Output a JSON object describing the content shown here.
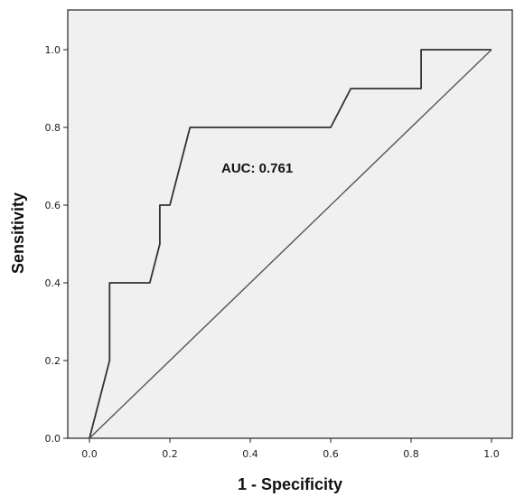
{
  "chart_data": {
    "type": "line",
    "xlabel": "1 - Specificity",
    "ylabel": "Sensitivity",
    "xlim": [
      0.0,
      1.0
    ],
    "ylim": [
      0.0,
      1.0
    ],
    "x_ticks": [
      "0.0",
      "0.2",
      "0.4",
      "0.6",
      "0.8",
      "1.0"
    ],
    "y_ticks": [
      "0.0",
      "0.2",
      "0.4",
      "0.6",
      "0.8",
      "1.0"
    ],
    "grid": false,
    "annotation": "AUC: 0.761",
    "series": [
      {
        "x": [
          0.0,
          0.05,
          0.05,
          0.15,
          0.175,
          0.175,
          0.2,
          0.25,
          0.6,
          0.65,
          0.825,
          0.825,
          1.0
        ],
        "y": [
          0.0,
          0.2,
          0.4,
          0.4,
          0.5,
          0.6,
          0.6,
          0.8,
          0.8,
          0.9,
          0.9,
          1.0,
          1.0
        ]
      },
      {
        "x": [
          0.0,
          1.0
        ],
        "y": [
          0.0,
          1.0
        ]
      }
    ],
    "colors": {
      "plot_background": "#f0f0f0",
      "curve": "#333333",
      "reference": "#555555",
      "frame": "#222222"
    }
  }
}
